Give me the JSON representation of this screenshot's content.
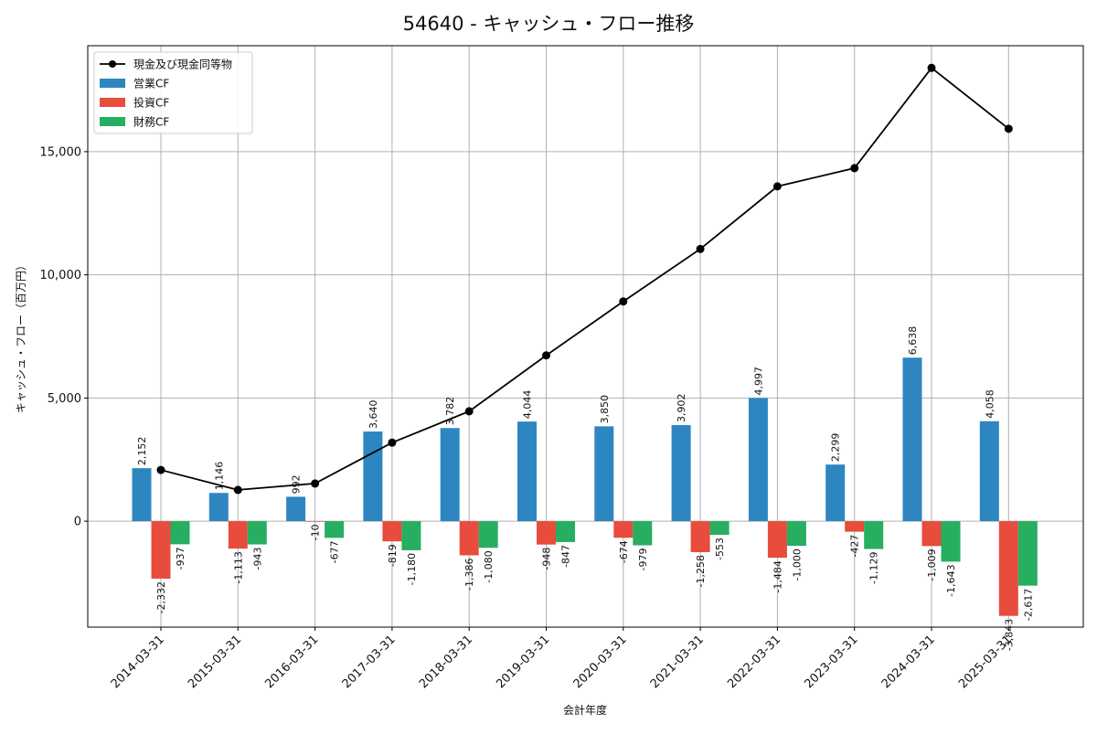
{
  "chart_data": {
    "type": "bar",
    "title": "54640 - キャッシュ・フロー推移",
    "xlabel": "会計年度",
    "ylabel": "キャッシュ・フロー（百万円）",
    "ylim": [
      -4300,
      19300
    ],
    "yticks": [
      0,
      5000,
      10000,
      15000
    ],
    "ytick_labels": [
      "0",
      "5,000",
      "10,000",
      "15,000"
    ],
    "grid": true,
    "legend_position": "top-left",
    "categories": [
      "2014-03-31",
      "2015-03-31",
      "2016-03-31",
      "2017-03-31",
      "2018-03-31",
      "2019-03-31",
      "2020-03-31",
      "2021-03-31",
      "2022-03-31",
      "2023-03-31",
      "2024-03-31",
      "2025-03-31"
    ],
    "series": [
      {
        "name": "営業CF",
        "kind": "bar",
        "color": "#2e86c1",
        "values": [
          2152,
          1146,
          992,
          3640,
          3782,
          4044,
          3850,
          3902,
          4997,
          2299,
          6638,
          4058
        ],
        "labels": [
          "2,152",
          "1,146",
          "992",
          "3,640",
          "3,782",
          "4,044",
          "3,850",
          "3,902",
          "4,997",
          "2,299",
          "6,638",
          "4,058"
        ]
      },
      {
        "name": "投資CF",
        "kind": "bar",
        "color": "#e74c3c",
        "values": [
          -2332,
          -1113,
          -10,
          -819,
          -1386,
          -948,
          -674,
          -1258,
          -1484,
          -427,
          -1009,
          -3843
        ],
        "labels": [
          "-2,332",
          "-1,113",
          "-10",
          "-819",
          "-1,386",
          "-948",
          "-674",
          "-1,258",
          "-1,484",
          "-427",
          "-1,009",
          "-3,843"
        ]
      },
      {
        "name": "財務CF",
        "kind": "bar",
        "color": "#27ae60",
        "values": [
          -937,
          -943,
          -677,
          -1180,
          -1080,
          -847,
          -979,
          -553,
          -1000,
          -1129,
          -1643,
          -2617
        ],
        "labels": [
          "-937",
          "-943",
          "-677",
          "-1,180",
          "-1,080",
          "-847",
          "-979",
          "-553",
          "-1,000",
          "-1,129",
          "-1,643",
          "-2,617"
        ]
      },
      {
        "name": "現金及び現金同等物",
        "kind": "line",
        "color": "#000000",
        "values": [
          2080,
          1270,
          1530,
          3190,
          4460,
          6730,
          8920,
          11050,
          13590,
          14330,
          18400,
          15930
        ]
      }
    ]
  }
}
